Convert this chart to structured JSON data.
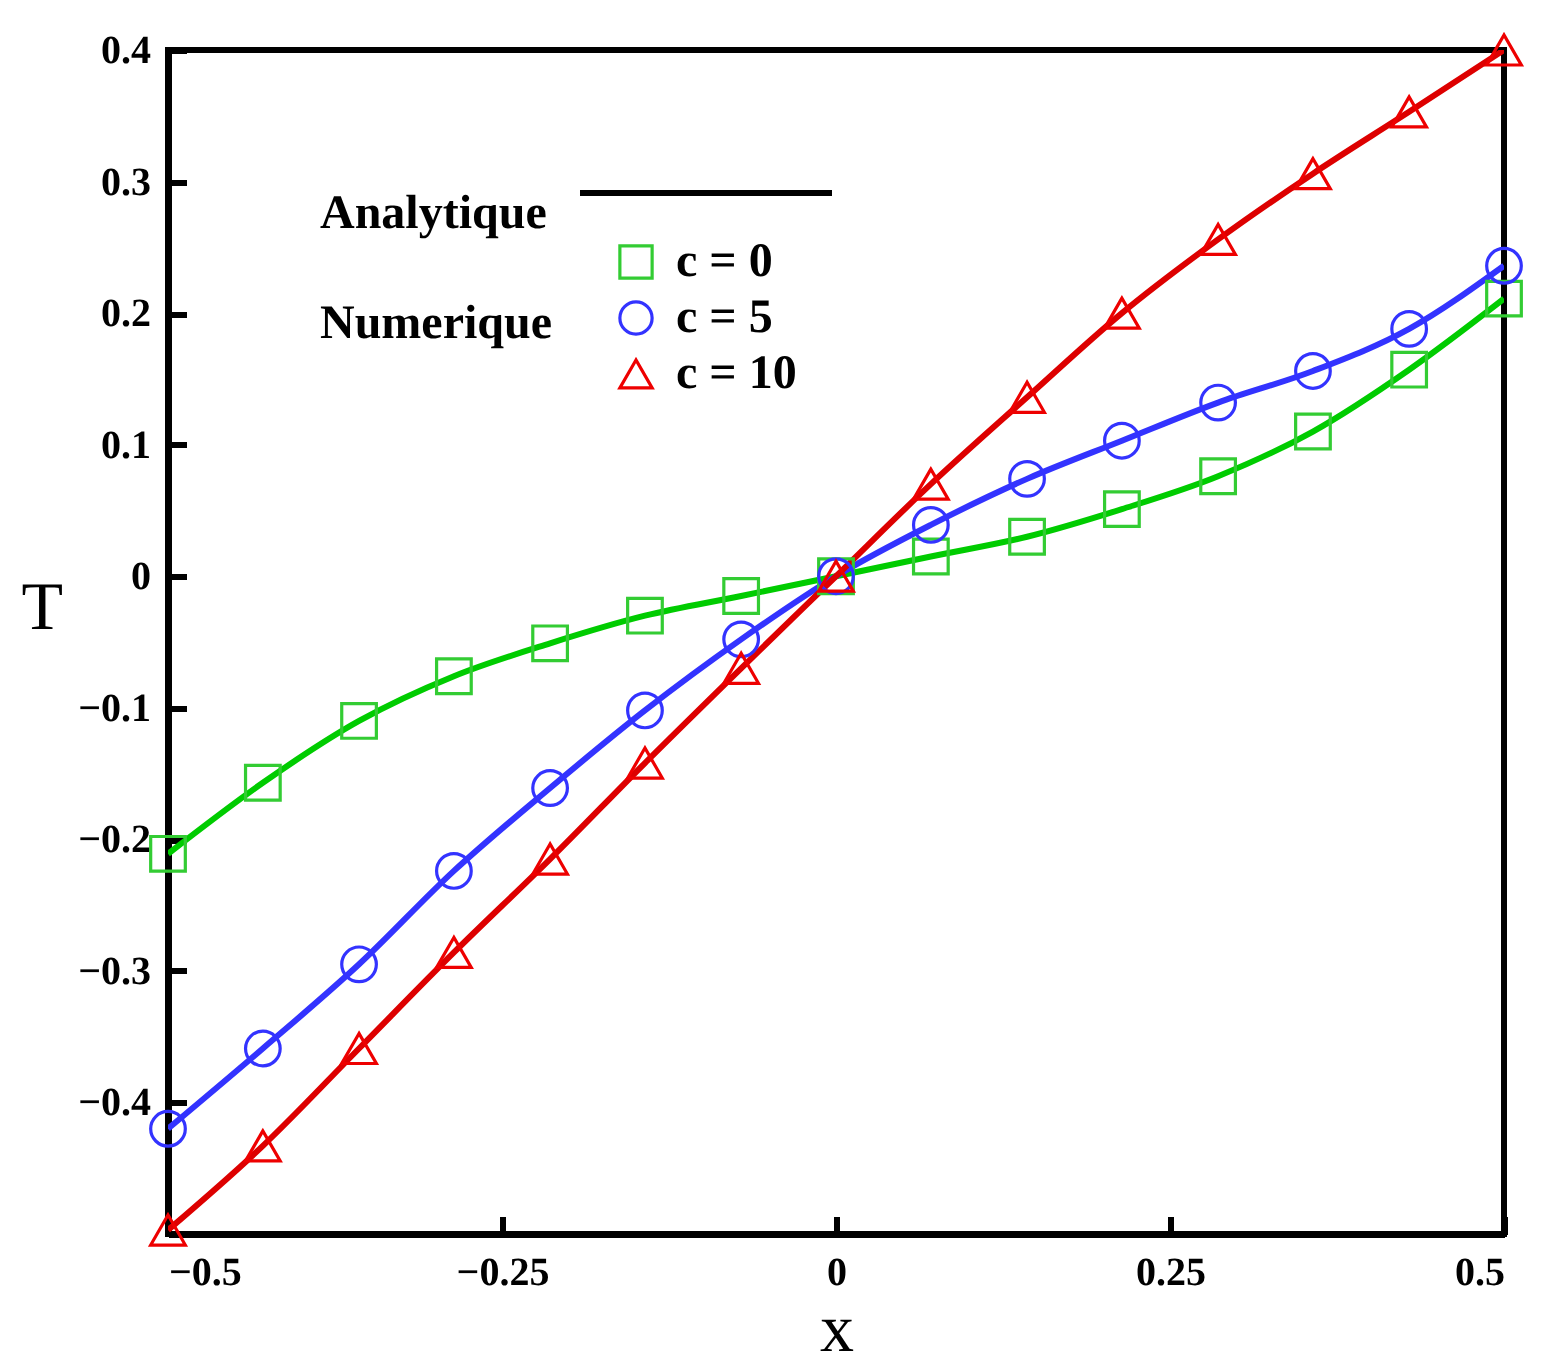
{
  "chart_data": {
    "type": "line",
    "xlabel": "x",
    "ylabel": "T",
    "x": [
      -0.5,
      -0.429,
      -0.357,
      -0.286,
      -0.214,
      -0.143,
      -0.071,
      0,
      0.071,
      0.143,
      0.214,
      0.286,
      0.357,
      0.429,
      0.5
    ],
    "xlim": [
      -0.5,
      0.5
    ],
    "xticks": [
      -0.5,
      -0.25,
      0,
      0.25,
      0.5
    ],
    "ylim": [
      -0.5,
      0.4
    ],
    "yticks": [
      -0.4,
      -0.3,
      -0.2,
      -0.1,
      0,
      0.1,
      0.2,
      0.3,
      0.4
    ],
    "grid": false,
    "legend": "top left",
    "annotations": [
      "Analytique",
      "Numerique"
    ],
    "series": [
      {
        "color": "#00cc00",
        "line_style": "solid",
        "values": [
          -0.211,
          -0.157,
          -0.11,
          -0.076,
          -0.051,
          -0.03,
          -0.015,
          0,
          0.015,
          0.03,
          0.051,
          0.076,
          0.11,
          0.157,
          0.211
        ]
      },
      {
        "color": "#3333ff",
        "line_style": "solid",
        "values": [
          -0.42,
          -0.359,
          -0.295,
          -0.224,
          -0.161,
          -0.102,
          -0.048,
          0,
          0.039,
          0.074,
          0.103,
          0.132,
          0.156,
          0.188,
          0.236
        ]
      },
      {
        "color": "#dd0000",
        "line_style": "solid",
        "values": [
          -0.497,
          -0.433,
          -0.359,
          -0.286,
          -0.215,
          -0.142,
          -0.07,
          0,
          0.07,
          0.136,
          0.2,
          0.256,
          0.306,
          0.353,
          0.4
        ]
      },
      {
        "type": "scatter",
        "name": "c = 0",
        "color": "#33cc33",
        "marker": "square",
        "values": [
          -0.211,
          -0.157,
          -0.11,
          -0.076,
          -0.051,
          -0.03,
          -0.015,
          0,
          0.015,
          0.03,
          0.051,
          0.076,
          0.11,
          0.157,
          0.211
        ]
      },
      {
        "type": "scatter",
        "name": "c = 5",
        "color": "#3333ff",
        "marker": "circle",
        "values": [
          -0.42,
          -0.359,
          -0.295,
          -0.224,
          -0.161,
          -0.102,
          -0.048,
          0,
          0.039,
          0.074,
          0.103,
          0.132,
          0.156,
          0.188,
          0.236
        ]
      },
      {
        "type": "scatter",
        "name": "c = 10",
        "color": "#ee0000",
        "marker": "triangle",
        "values": [
          -0.497,
          -0.433,
          -0.359,
          -0.286,
          -0.215,
          -0.142,
          -0.07,
          0,
          0.07,
          0.136,
          0.2,
          0.256,
          0.306,
          0.353,
          0.4
        ]
      }
    ]
  }
}
